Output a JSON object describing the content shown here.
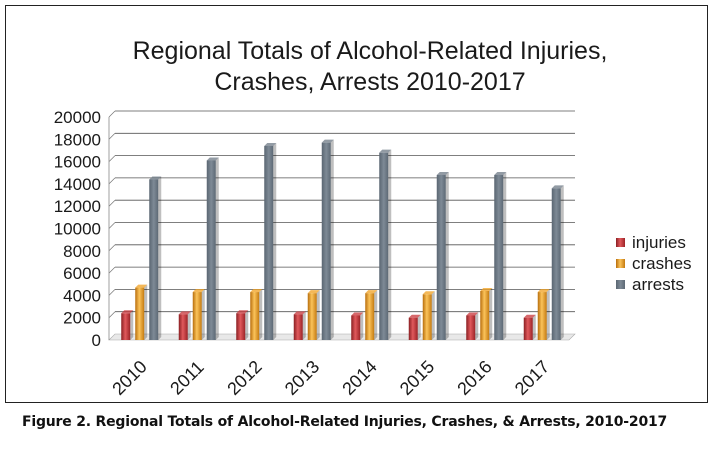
{
  "chart_data": {
    "type": "bar",
    "title_lines": [
      "Regional Totals of Alcohol-Related Injuries,",
      "Crashes, Arrests 2010-2017"
    ],
    "categories": [
      "2010",
      "2011",
      "2012",
      "2013",
      "2014",
      "2015",
      "2016",
      "2017"
    ],
    "series": [
      {
        "name": "injuries",
        "color": "#c8363a",
        "values": [
          2400,
          2300,
          2400,
          2300,
          2200,
          2000,
          2200,
          2000
        ]
      },
      {
        "name": "crashes",
        "color": "#f0a020",
        "values": [
          4700,
          4300,
          4300,
          4200,
          4200,
          4100,
          4400,
          4300
        ]
      },
      {
        "name": "arrests",
        "color": "#6d7a86",
        "values": [
          14400,
          16100,
          17400,
          17700,
          16800,
          14800,
          14800,
          13600
        ]
      }
    ],
    "ylim": [
      0,
      20000
    ],
    "yticks": [
      0,
      2000,
      4000,
      6000,
      8000,
      10000,
      12000,
      14000,
      16000,
      18000,
      20000
    ],
    "xlabel": "",
    "ylabel": "",
    "grid": true,
    "legend_position": "right"
  },
  "caption": "Figure 2. Regional Totals of Alcohol-Related Injuries, Crashes, & Arrests, 2010-2017"
}
